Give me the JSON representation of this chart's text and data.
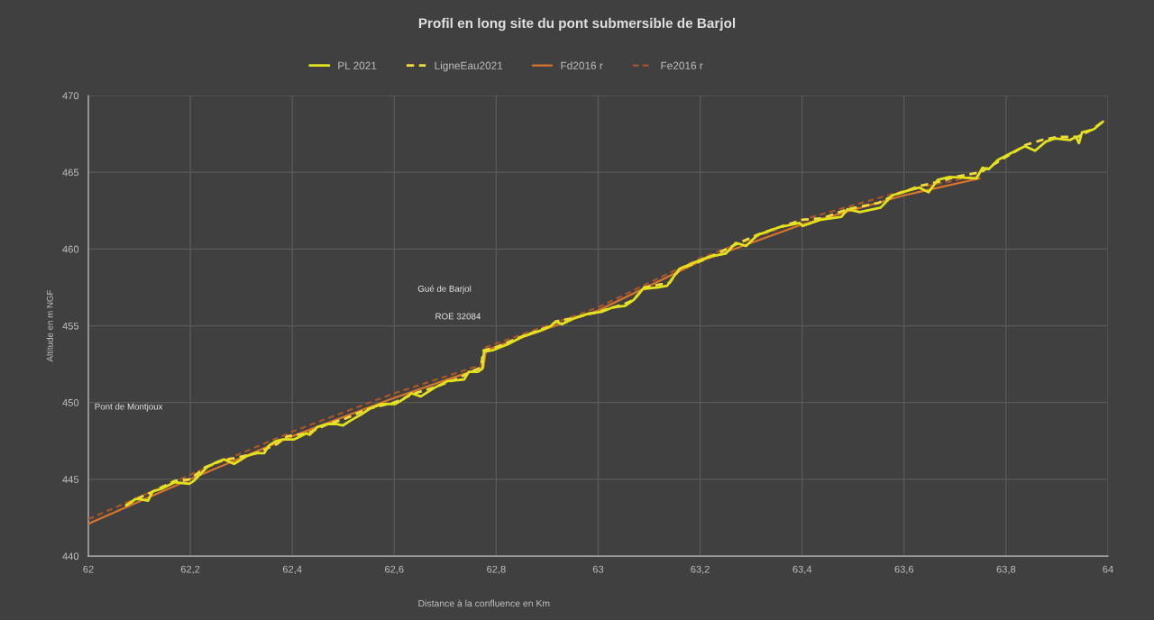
{
  "chart_data": {
    "type": "line",
    "title": "Profil en long site du pont submersible de Barjol",
    "xlabel": "Distance à la confluence en Km",
    "ylabel": "Altitude en m NGF",
    "xlim": [
      62,
      64
    ],
    "ylim": [
      440,
      470
    ],
    "xticks": [
      62,
      {
        "value": 62.2,
        "label": "62,2"
      },
      {
        "value": 62.4,
        "label": "62,4"
      },
      {
        "value": 62.6,
        "label": "62,6"
      },
      {
        "value": 62.8,
        "label": "62,8"
      },
      63,
      {
        "value": 63.2,
        "label": "63,2"
      },
      {
        "value": 63.4,
        "label": "63,4"
      },
      {
        "value": 63.6,
        "label": "63,6"
      },
      {
        "value": 63.8,
        "label": "63,8"
      },
      64
    ],
    "yticks": [
      440,
      445,
      450,
      455,
      460,
      465,
      470
    ],
    "grid": true,
    "legend": "top",
    "series": [
      {
        "name": "PL 2021",
        "color": "#e2e21c",
        "line_style": "solid",
        "x": [
          62.074,
          62.092,
          62.101,
          62.117,
          62.126,
          62.145,
          62.169,
          62.198,
          62.207,
          62.233,
          62.251,
          62.266,
          62.286,
          62.31,
          62.328,
          62.345,
          62.354,
          62.369,
          62.381,
          62.404,
          62.416,
          62.428,
          62.434,
          62.449,
          62.469,
          62.487,
          62.499,
          62.513,
          62.534,
          62.552,
          62.575,
          62.602,
          62.617,
          62.634,
          62.652,
          62.681,
          62.705,
          62.737,
          62.746,
          62.764,
          62.773,
          62.776,
          62.793,
          62.823,
          62.852,
          62.888,
          62.908,
          62.917,
          62.929,
          62.953,
          62.982,
          63.006,
          63.029,
          63.053,
          63.07,
          63.088,
          63.118,
          63.135,
          63.159,
          63.194,
          63.218,
          63.25,
          63.27,
          63.29,
          63.312,
          63.353,
          63.395,
          63.401,
          63.436,
          63.477,
          63.489,
          63.513,
          63.554,
          63.577,
          63.607,
          63.63,
          63.648,
          63.666,
          63.689,
          63.742,
          63.754,
          63.766,
          63.784,
          63.807,
          63.837,
          63.857,
          63.878,
          63.896,
          63.925,
          63.937,
          63.943,
          63.949,
          63.972,
          63.99
        ],
        "values": [
          443.3,
          443.7,
          443.7,
          443.6,
          444.2,
          444.4,
          444.8,
          444.7,
          444.9,
          445.8,
          446.1,
          446.3,
          446.0,
          446.5,
          446.7,
          446.7,
          447.2,
          447.5,
          447.6,
          447.6,
          447.8,
          448.0,
          447.9,
          448.4,
          448.6,
          448.6,
          448.5,
          448.8,
          449.2,
          449.6,
          449.9,
          449.9,
          450.2,
          450.6,
          450.4,
          451.0,
          451.4,
          451.5,
          452.0,
          452.0,
          452.2,
          453.3,
          453.4,
          453.8,
          454.3,
          454.7,
          455.0,
          455.3,
          455.1,
          455.5,
          455.8,
          455.9,
          456.2,
          456.3,
          456.7,
          457.4,
          457.5,
          457.6,
          458.7,
          459.2,
          459.5,
          459.7,
          460.4,
          460.2,
          460.9,
          461.4,
          461.7,
          461.5,
          461.9,
          462.1,
          462.6,
          462.4,
          462.7,
          463.5,
          463.8,
          464.0,
          463.7,
          464.5,
          464.7,
          464.6,
          465.3,
          465.2,
          465.8,
          466.2,
          466.7,
          466.4,
          467.0,
          467.2,
          467.1,
          467.3,
          466.9,
          467.6,
          467.8,
          468.3
        ]
      },
      {
        "name": "LigneEau2021",
        "color": "#f2dc3c",
        "line_style": "dashed",
        "x": [
          62.074,
          62.1,
          62.12,
          62.145,
          62.17,
          62.2,
          62.23,
          62.26,
          62.29,
          62.33,
          62.37,
          62.39,
          62.43,
          62.47,
          62.5,
          62.55,
          62.6,
          62.64,
          62.68,
          62.72,
          62.745,
          62.77,
          62.775,
          62.8,
          62.85,
          62.9,
          62.92,
          62.95,
          63.0,
          63.05,
          63.07,
          63.09,
          63.14,
          63.16,
          63.2,
          63.22,
          63.27,
          63.31,
          63.353,
          63.4,
          63.44,
          63.49,
          63.55,
          63.58,
          63.63,
          63.67,
          63.7,
          63.75,
          63.78,
          63.84,
          63.87,
          63.9,
          63.94,
          63.97,
          63.99
        ],
        "values": [
          443.3,
          443.8,
          444.1,
          444.5,
          444.9,
          445.0,
          445.8,
          446.2,
          446.4,
          446.7,
          447.3,
          447.8,
          448.0,
          448.6,
          448.9,
          449.6,
          450.0,
          450.6,
          451.0,
          451.5,
          451.9,
          452.3,
          453.4,
          453.6,
          454.3,
          454.9,
          455.3,
          455.5,
          455.9,
          456.4,
          456.7,
          457.5,
          457.8,
          458.7,
          459.2,
          459.5,
          460.3,
          460.9,
          461.4,
          461.9,
          462.0,
          462.6,
          463.0,
          463.5,
          464.1,
          464.4,
          464.7,
          465.0,
          465.6,
          466.8,
          467.1,
          467.3,
          467.3,
          467.8,
          468.3
        ]
      },
      {
        "name": "Fd2016 r",
        "color": "#d8742c",
        "line_style": "solid",
        "x": [
          62.0,
          62.2,
          62.4,
          62.6,
          62.775,
          62.78,
          63.0,
          63.2,
          63.4,
          63.6,
          63.748
        ],
        "values": [
          442.1,
          445.0,
          447.8,
          450.3,
          452.3,
          453.4,
          456.0,
          459.2,
          461.6,
          463.5,
          464.6
        ]
      },
      {
        "name": "Fe2016 r",
        "color": "#a8552a",
        "line_style": "dashed",
        "x": [
          62.0,
          62.2,
          62.4,
          62.6,
          62.775,
          62.78,
          63.0,
          63.2,
          63.4,
          63.6,
          63.748
        ],
        "values": [
          442.4,
          445.3,
          448.1,
          450.6,
          452.5,
          453.6,
          456.2,
          459.4,
          461.9,
          463.8,
          464.8
        ]
      }
    ],
    "annotations": [
      "Pont de Montjoux",
      "Gué de Barjol",
      "ROE 32084"
    ]
  }
}
